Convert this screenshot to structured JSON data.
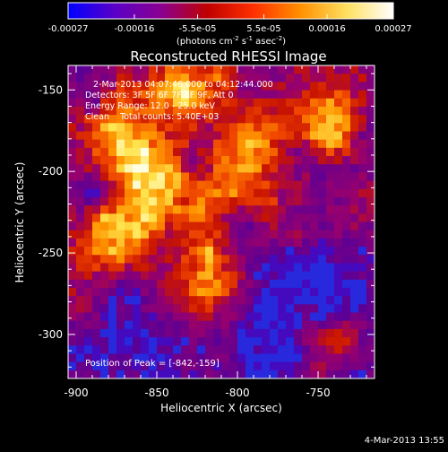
{
  "chart_data": {
    "type": "heatmap",
    "title": "Reconstructed RHESSI Image",
    "xlabel": "Heliocentric X (arcsec)",
    "ylabel": "Heliocentric Y (arcsec)",
    "xlim": [
      -905,
      -715
    ],
    "ylim": [
      -327,
      -135
    ],
    "x_ticks": [
      -900,
      -850,
      -800,
      -750
    ],
    "y_ticks": [
      -150,
      -200,
      -250,
      -300
    ],
    "x_tick_labels": [
      "-900",
      "-850",
      "-800",
      "-750"
    ],
    "y_tick_labels": [
      "-150",
      "-200",
      "-250",
      "-300"
    ],
    "colorbar": {
      "ticks": [
        -0.00027,
        -0.00016,
        -5.5e-05,
        5.5e-05,
        0.00016,
        0.00027
      ],
      "tick_labels": [
        "-0.00027",
        "-0.00016",
        "-5.5e-05",
        "5.5e-05",
        "0.00016",
        "0.00027"
      ],
      "unit_text": "(photons cm",
      "unit_parts": [
        "-2",
        " s",
        "-1",
        " asec",
        "-2",
        ")"
      ],
      "colors": [
        "#0000ff",
        "#5a00c8",
        "#8a0090",
        "#c00000",
        "#ff3000",
        "#ff9000",
        "#ffe060",
        "#ffffff"
      ]
    },
    "annotations": [
      "2-Mar-2013 04:07:46.000 to 04:12:44.000",
      "Detectors: 3F 5F 6F 7F 8F 9F, Att 0",
      "Energy Range: 12.0 - 25.0 keV",
      "Clean    Total counts: 5.40E+03"
    ],
    "peak_label": "Position of Peak = [-842,-159]",
    "peak": [
      -842,
      -159
    ]
  },
  "footer": {
    "timestamp": "4-Mar-2013 13:55"
  }
}
